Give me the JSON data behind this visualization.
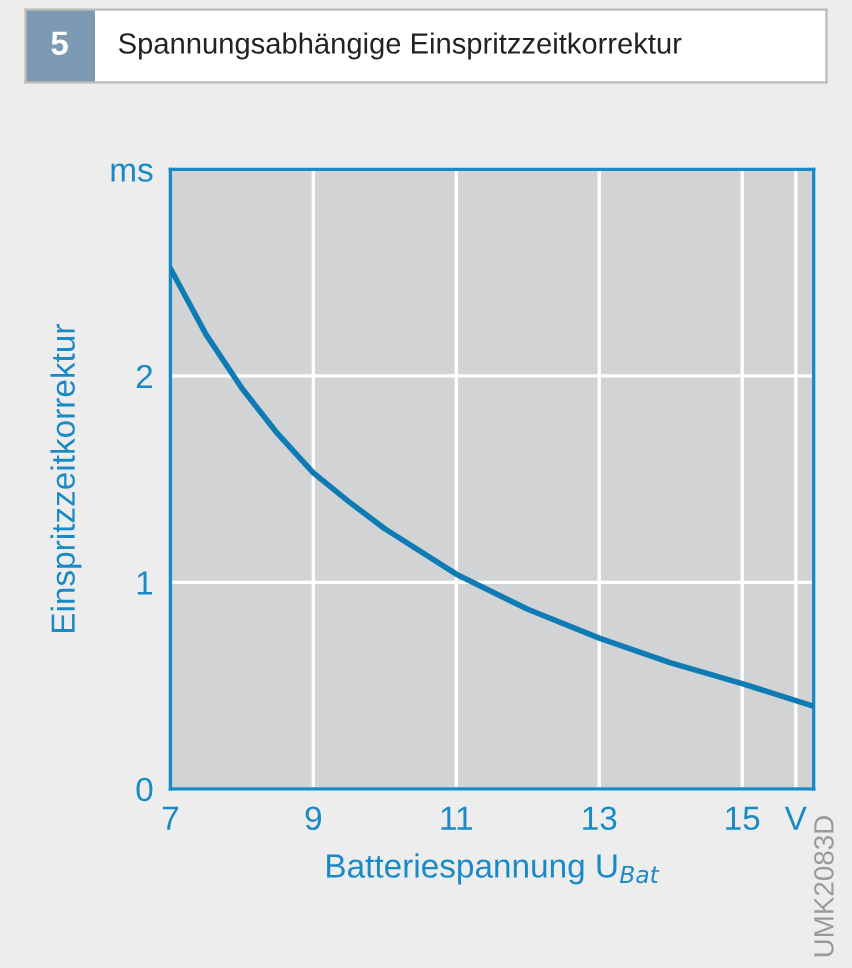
{
  "chart_data": {
    "type": "line",
    "title": "Spannungsabhängige Einspritzzeitkorrektur",
    "xlabel": "Batteriespannung U$_{Bat}$",
    "ylabel": "Einspritzzeitkorrektur",
    "x": [
      7,
      7.5,
      8,
      8.5,
      9,
      9.5,
      10,
      11,
      12,
      13,
      14,
      15,
      16
    ],
    "series": [
      {
        "color": "#0f7bb5",
        "values": [
          2.52,
          2.2,
          1.94,
          1.72,
          1.53,
          1.39,
          1.26,
          1.04,
          0.87,
          0.73,
          0.61,
          0.51,
          0.4
        ]
      }
    ],
    "xlim": [
      7,
      16
    ],
    "xticks": [
      7,
      9,
      11,
      13,
      15,
      {
        "value": 15.75,
        "label": "V"
      }
    ],
    "ylim": [
      0,
      3
    ],
    "yticks": [
      0,
      1,
      2,
      {
        "value": 3,
        "label": "ms"
      }
    ],
    "grid": true,
    "marker": "none",
    "line_style": "solid",
    "annotations": [
      "5",
      "UMK2083D"
    ]
  }
}
